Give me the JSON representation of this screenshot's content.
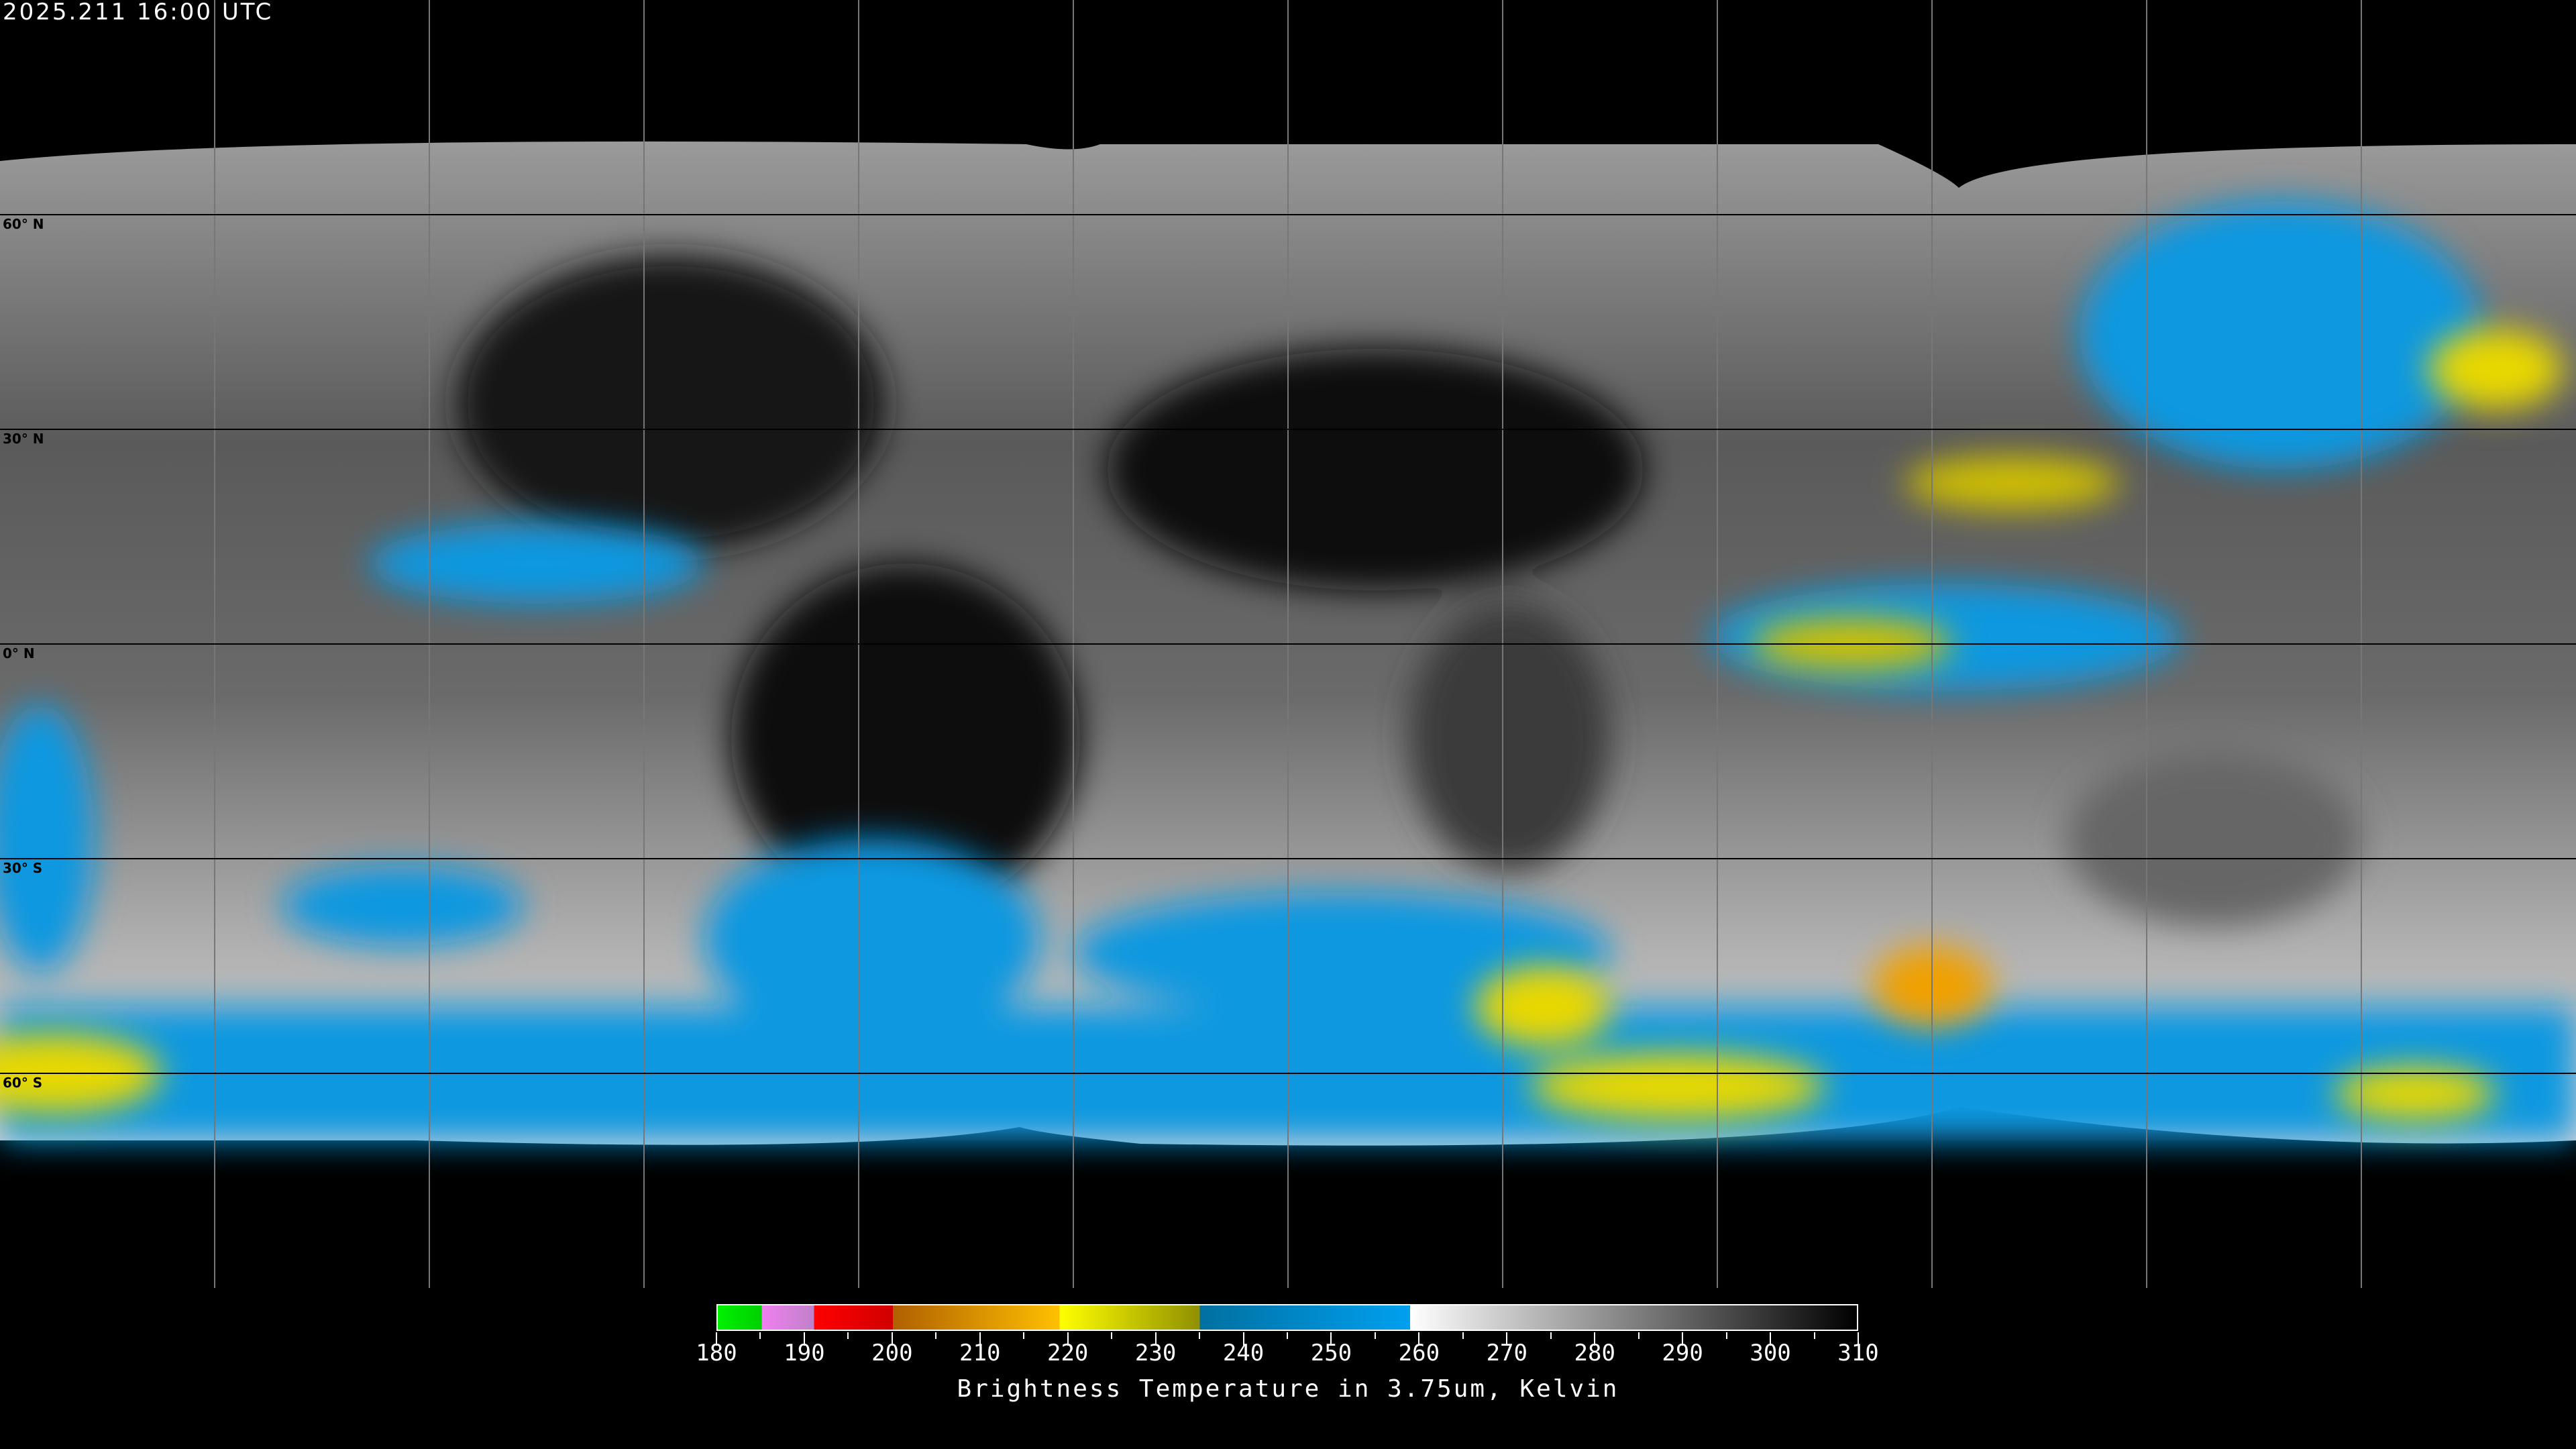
{
  "timestamp": "2025.211 16:00 UTC",
  "map": {
    "projection": "equirectangular",
    "lon_grid_step_deg": 30,
    "lat_grid_step_deg": 30,
    "grid_color": "#000000",
    "coastline_color": "#ffffff",
    "lat_labels": [
      "60° N",
      "30° N",
      "0° N",
      "30° S",
      "60° S"
    ]
  },
  "colorbar": {
    "title": "Brightness Temperature in 3.75um, Kelvin",
    "min": 180,
    "max": 310,
    "tick_labels": [
      "180",
      "190",
      "200",
      "210",
      "220",
      "230",
      "240",
      "250",
      "260",
      "270",
      "280",
      "290",
      "300",
      "310"
    ],
    "segments": [
      {
        "from": 180,
        "to": 185,
        "start": "#00f000",
        "end": "#00d000"
      },
      {
        "from": 185,
        "to": 191,
        "start": "#f080f0",
        "end": "#c080c8"
      },
      {
        "from": 191,
        "to": 200,
        "start": "#ff0000",
        "end": "#d00000"
      },
      {
        "from": 200,
        "to": 219,
        "start": "#b06000",
        "end": "#ffc000"
      },
      {
        "from": 219,
        "to": 235,
        "start": "#ffff00",
        "end": "#909000"
      },
      {
        "from": 235,
        "to": 259,
        "start": "#0070a0",
        "end": "#00a0f0"
      },
      {
        "from": 259,
        "to": 310,
        "start": "#ffffff",
        "end": "#000000"
      }
    ]
  }
}
